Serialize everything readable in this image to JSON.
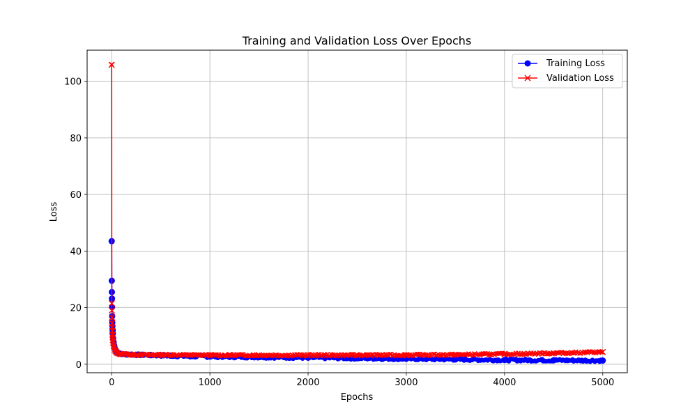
{
  "chart_data": {
    "type": "line",
    "title": "Training and Validation Loss Over Epochs",
    "xlabel": "Epochs",
    "ylabel": "Loss",
    "xlim": [
      -250,
      5250
    ],
    "ylim": [
      -3,
      111
    ],
    "xticks": [
      0,
      1000,
      2000,
      3000,
      4000,
      5000
    ],
    "yticks": [
      0,
      20,
      40,
      60,
      80,
      100
    ],
    "grid": true,
    "legend_position": "top-right",
    "series": [
      {
        "name": "Training Loss",
        "color": "#0000ff",
        "marker": "circle",
        "x": [
          0,
          1,
          2,
          3,
          4,
          5,
          6,
          8,
          10,
          12,
          15,
          20,
          25,
          30,
          40,
          50,
          60,
          80,
          100,
          150,
          200,
          300,
          400,
          500,
          600,
          800,
          1000,
          1200,
          1500,
          2000,
          2500,
          3000,
          3500,
          4000,
          4500,
          5000
        ],
        "y": [
          43.5,
          29.5,
          25.5,
          23.2,
          20.2,
          17.0,
          14.8,
          13.5,
          12.0,
          10.8,
          9.2,
          7.8,
          6.6,
          5.8,
          4.9,
          4.4,
          4.1,
          3.8,
          3.6,
          3.5,
          3.4,
          3.3,
          3.2,
          3.1,
          3.0,
          2.8,
          2.7,
          2.6,
          2.5,
          2.3,
          2.1,
          1.9,
          1.7,
          1.5,
          1.4,
          1.3
        ]
      },
      {
        "name": "Validation Loss",
        "color": "#ff0000",
        "marker": "x",
        "x": [
          0,
          1,
          2,
          3,
          4,
          5,
          6,
          8,
          10,
          12,
          15,
          20,
          25,
          30,
          40,
          50,
          60,
          80,
          100,
          150,
          200,
          300,
          400,
          500,
          600,
          800,
          1000,
          1200,
          1500,
          2000,
          2500,
          3000,
          3500,
          4000,
          4500,
          5000
        ],
        "y": [
          105.8,
          21.5,
          19.0,
          16.5,
          14.5,
          13.0,
          11.8,
          10.5,
          9.5,
          8.5,
          7.6,
          6.5,
          5.8,
          5.1,
          4.6,
          4.2,
          3.9,
          3.7,
          3.6,
          3.5,
          3.4,
          3.35,
          3.3,
          3.3,
          3.3,
          3.25,
          3.2,
          3.2,
          3.2,
          3.2,
          3.2,
          3.25,
          3.35,
          3.6,
          3.9,
          4.3
        ]
      }
    ]
  }
}
